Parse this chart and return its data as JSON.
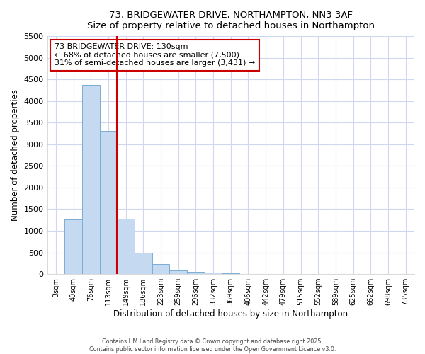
{
  "title1": "73, BRIDGEWATER DRIVE, NORTHAMPTON, NN3 3AF",
  "title2": "Size of property relative to detached houses in Northampton",
  "xlabel": "Distribution of detached houses by size in Northampton",
  "ylabel": "Number of detached properties",
  "bar_labels": [
    "3sqm",
    "40sqm",
    "76sqm",
    "113sqm",
    "149sqm",
    "186sqm",
    "223sqm",
    "259sqm",
    "296sqm",
    "332sqm",
    "369sqm",
    "406sqm",
    "442sqm",
    "479sqm",
    "515sqm",
    "552sqm",
    "589sqm",
    "625sqm",
    "662sqm",
    "698sqm",
    "735sqm"
  ],
  "bar_values": [
    0,
    1260,
    4370,
    3310,
    1280,
    500,
    230,
    90,
    55,
    30,
    10,
    0,
    0,
    0,
    0,
    0,
    0,
    0,
    0,
    0,
    0
  ],
  "ylim": [
    0,
    5500
  ],
  "yticks": [
    0,
    500,
    1000,
    1500,
    2000,
    2500,
    3000,
    3500,
    4000,
    4500,
    5000,
    5500
  ],
  "bar_color": "#c5d9f0",
  "bar_edge_color": "#7aaed4",
  "vline_color": "#cc0000",
  "annotation_title": "73 BRIDGEWATER DRIVE: 130sqm",
  "annotation_line1": "← 68% of detached houses are smaller (7,500)",
  "annotation_line2": "31% of semi-detached houses are larger (3,431) →",
  "annotation_box_color": "#cc0000",
  "footer1": "Contains HM Land Registry data © Crown copyright and database right 2025.",
  "footer2": "Contains public sector information licensed under the Open Government Licence v3.0.",
  "bg_color": "#ffffff",
  "grid_color": "#d0d8f0"
}
